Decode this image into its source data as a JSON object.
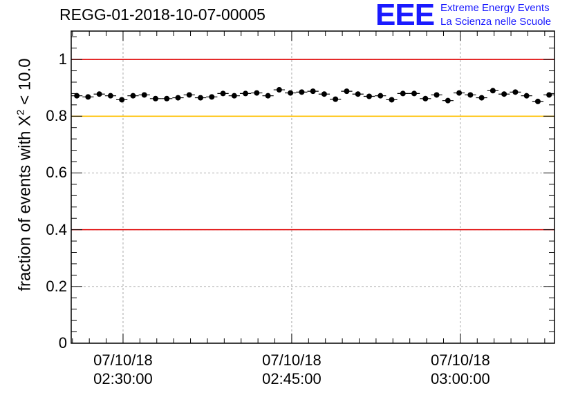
{
  "header": {
    "run_id": "REGG-01-2018-10-07-00005",
    "logo_text": "EEE",
    "logo_line1": "Extreme Energy Events",
    "logo_line2": "La Scienza nelle Scuole"
  },
  "chart_data": {
    "type": "scatter",
    "title": "REGG-01-2018-10-07-00005",
    "xlabel": "",
    "ylabel_prefix": "fraction of events with X",
    "ylabel_sup": "2",
    "ylabel_suffix": " < 10.0",
    "ylim": [
      0,
      1.1
    ],
    "yticks": [
      "0",
      "0.2",
      "0.4",
      "0.6",
      "0.8",
      "1"
    ],
    "ytick_values": [
      0,
      0.2,
      0.4,
      0.6,
      0.8,
      1.0
    ],
    "xlim_minutes": [
      26.89,
      69.87
    ],
    "xticks": [
      {
        "minute": 31.5,
        "date": "07/10/18",
        "time": "02:30:00"
      },
      {
        "minute": 46.5,
        "date": "07/10/18",
        "time": "02:45:00"
      },
      {
        "minute": 61.5,
        "date": "07/10/18",
        "time": "03:00:00"
      }
    ],
    "grid": true,
    "reference_lines": [
      {
        "value": 1.0,
        "color": "#e00000"
      },
      {
        "value": 0.8,
        "color": "#ffc000"
      },
      {
        "value": 0.4,
        "color": "#e00000"
      }
    ],
    "point_color": "#000000",
    "bin_width_minutes": 1.0,
    "series": [
      {
        "name": "fraction",
        "x_minutes": [
          27.39,
          28.39,
          29.39,
          30.39,
          31.39,
          32.39,
          33.39,
          34.39,
          35.39,
          36.39,
          37.39,
          38.39,
          39.39,
          40.39,
          41.39,
          42.39,
          43.39,
          44.39,
          45.39,
          46.39,
          47.39,
          48.39,
          49.39,
          50.39,
          51.39,
          52.39,
          53.39,
          54.39,
          55.39,
          56.39,
          57.39,
          58.39,
          59.39,
          60.39,
          61.39,
          62.39,
          63.39,
          64.39,
          65.39,
          66.39,
          67.39,
          68.39,
          69.39
        ],
        "values": [
          0.872,
          0.868,
          0.878,
          0.872,
          0.858,
          0.872,
          0.875,
          0.862,
          0.862,
          0.865,
          0.875,
          0.865,
          0.868,
          0.88,
          0.872,
          0.88,
          0.882,
          0.872,
          0.893,
          0.882,
          0.885,
          0.888,
          0.878,
          0.86,
          0.888,
          0.878,
          0.87,
          0.872,
          0.858,
          0.88,
          0.88,
          0.862,
          0.875,
          0.855,
          0.882,
          0.875,
          0.865,
          0.89,
          0.878,
          0.885,
          0.872,
          0.852,
          0.875
        ]
      }
    ]
  }
}
